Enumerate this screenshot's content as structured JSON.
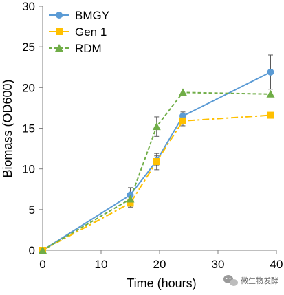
{
  "chart_data": {
    "type": "line",
    "xlabel": "Time (hours)",
    "ylabel": "Biomass (OD600)",
    "xlim": [
      0,
      40
    ],
    "ylim": [
      0,
      30
    ],
    "xticks": [
      0,
      10,
      20,
      30,
      40
    ],
    "yticks": [
      0,
      5,
      10,
      15,
      20,
      25,
      30
    ],
    "grid": false,
    "legend_position": "top-left",
    "series": [
      {
        "name": "BMGY",
        "color": "#5b9bd5",
        "marker": "circle",
        "line_style": "solid",
        "x": [
          0,
          15,
          19.5,
          24,
          39
        ],
        "y": [
          0,
          6.8,
          11.0,
          16.5,
          21.9
        ],
        "error": [
          0,
          0.9,
          0.6,
          0.5,
          2.1
        ]
      },
      {
        "name": "Gen 1",
        "color": "#ffc000",
        "marker": "square",
        "line_style": "dashdot",
        "x": [
          0,
          15,
          19.5,
          24,
          39
        ],
        "y": [
          0,
          5.8,
          10.9,
          15.9,
          16.6
        ],
        "error": [
          0,
          0.5,
          1.0,
          0.6,
          0
        ]
      },
      {
        "name": "RDM",
        "color": "#70ad47",
        "marker": "triangle",
        "line_style": "dashed",
        "x": [
          0,
          15,
          19.5,
          24,
          39
        ],
        "y": [
          0,
          6.3,
          15.2,
          19.4,
          19.2
        ],
        "error": [
          0,
          0,
          1.2,
          0,
          0
        ]
      }
    ]
  },
  "watermark": {
    "text": "微生物发酵",
    "icon": "wechat-icon"
  }
}
